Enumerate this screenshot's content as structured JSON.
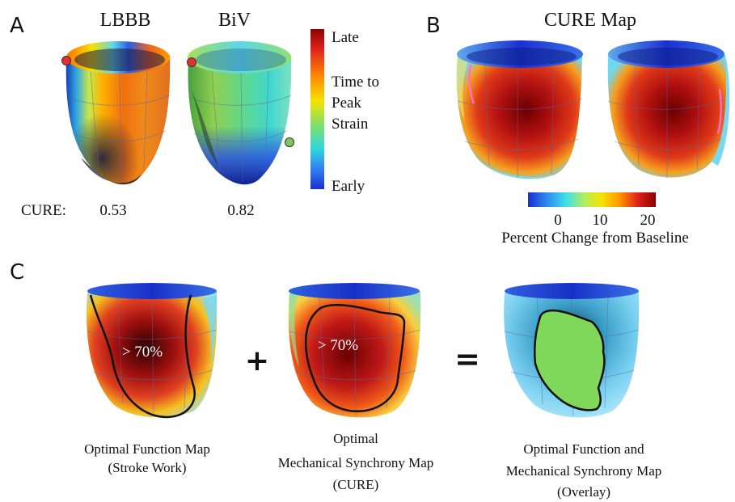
{
  "panels": {
    "a": {
      "letter": "A",
      "hearts": [
        "LBBB",
        "BiV"
      ],
      "cure_label": "CURE:",
      "cure_values": [
        "0.53",
        "0.82"
      ],
      "colorbar": {
        "top": "Late",
        "middle": [
          "Time to",
          "Peak",
          "Strain"
        ],
        "bottom": "Early"
      }
    },
    "b": {
      "letter": "B",
      "title": "CURE Map",
      "colorbar": {
        "ticks": [
          "0",
          "10",
          "20"
        ],
        "label": "Percent Change from Baseline"
      }
    },
    "c": {
      "letter": "C",
      "region_label": "> 70%",
      "plus": "+",
      "equals": "=",
      "captions": [
        [
          "Optimal Function Map",
          "(Stroke Work)"
        ],
        [
          "Optimal",
          "Mechanical Synchrony Map",
          "(CURE)"
        ],
        [
          "Optimal Function and",
          "Mechanical Synchrony Map",
          "(Overlay)"
        ]
      ]
    }
  },
  "colors": {
    "late": "#c8102e",
    "early": "#2850d8",
    "overlay_green": "#7fd85a",
    "pacing_red": "#e53030",
    "pacing_green": "#7cc85c"
  }
}
